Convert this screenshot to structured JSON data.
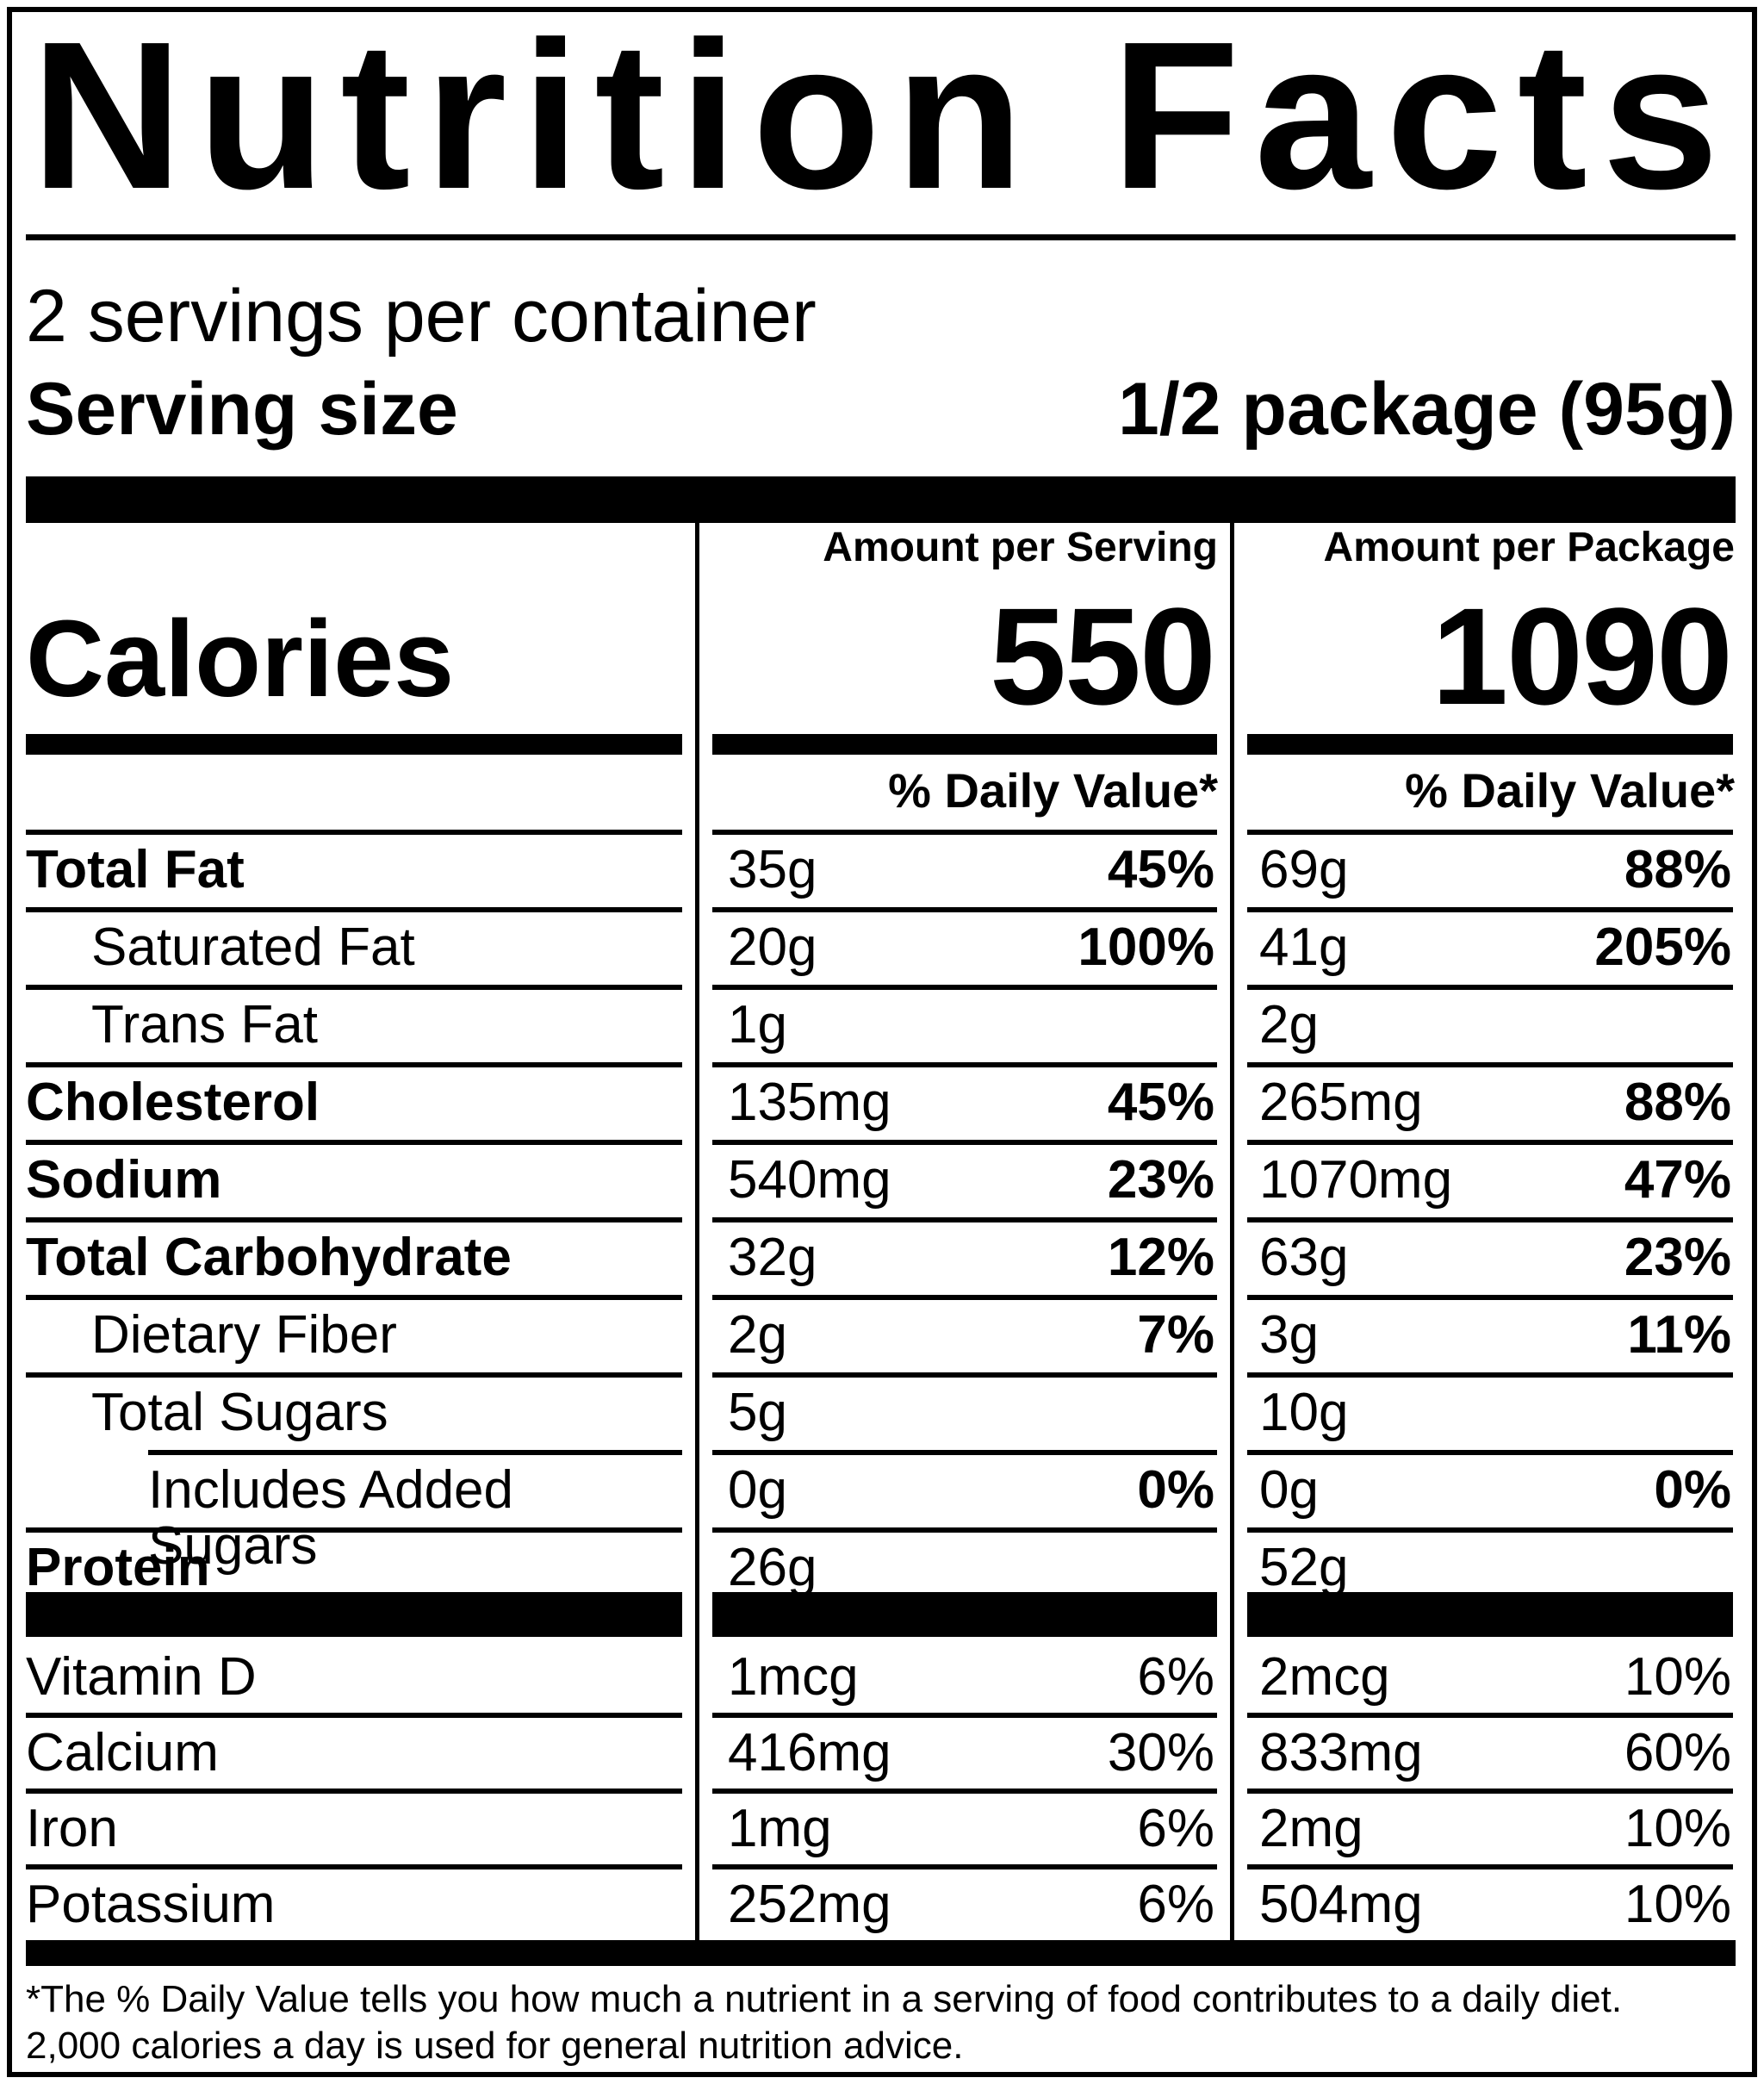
{
  "colors": {
    "ink": "#000000",
    "paper": "#ffffff"
  },
  "label": {
    "title": "Nutrition Facts",
    "servings_per_container": "2 servings per container",
    "serving_size": {
      "label": "Serving size",
      "value": "1/2 package (95g)"
    },
    "calories_label": "Calories",
    "columns": [
      {
        "amount_header": "Amount per Serving",
        "calories": "550",
        "daily_value_header": "% Daily Value*"
      },
      {
        "amount_header": "Amount per Package",
        "calories": "1090",
        "daily_value_header": "% Daily Value*"
      }
    ],
    "nutrients": [
      {
        "label": "Total Fat",
        "bold": true,
        "indent": 0,
        "per_serving": {
          "amount": "35g",
          "dv": "45%"
        },
        "per_package": {
          "amount": "69g",
          "dv": "88%"
        }
      },
      {
        "label": "Saturated Fat",
        "bold": false,
        "indent": 1,
        "per_serving": {
          "amount": "20g",
          "dv": "100%"
        },
        "per_package": {
          "amount": "41g",
          "dv": "205%"
        }
      },
      {
        "label": "Trans Fat",
        "bold": false,
        "indent": 1,
        "per_serving": {
          "amount": "1g",
          "dv": ""
        },
        "per_package": {
          "amount": "2g",
          "dv": ""
        }
      },
      {
        "label": "Cholesterol",
        "bold": true,
        "indent": 0,
        "per_serving": {
          "amount": "135mg",
          "dv": "45%"
        },
        "per_package": {
          "amount": "265mg",
          "dv": "88%"
        }
      },
      {
        "label": "Sodium",
        "bold": true,
        "indent": 0,
        "per_serving": {
          "amount": "540mg",
          "dv": "23%"
        },
        "per_package": {
          "amount": "1070mg",
          "dv": "47%"
        }
      },
      {
        "label": "Total Carbohydrate",
        "bold": true,
        "indent": 0,
        "per_serving": {
          "amount": "32g",
          "dv": "12%"
        },
        "per_package": {
          "amount": "63g",
          "dv": "23%"
        }
      },
      {
        "label": "Dietary Fiber",
        "bold": false,
        "indent": 1,
        "per_serving": {
          "amount": "2g",
          "dv": "7%"
        },
        "per_package": {
          "amount": "3g",
          "dv": "11%"
        }
      },
      {
        "label": "Total Sugars",
        "bold": false,
        "indent": 1,
        "per_serving": {
          "amount": "5g",
          "dv": ""
        },
        "per_package": {
          "amount": "10g",
          "dv": ""
        }
      },
      {
        "label": "Includes Added Sugars",
        "bold": false,
        "indent": 2,
        "per_serving": {
          "amount": "0g",
          "dv": "0%"
        },
        "per_package": {
          "amount": "0g",
          "dv": "0%"
        }
      },
      {
        "label": "Protein",
        "bold": true,
        "indent": 0,
        "per_serving": {
          "amount": "26g",
          "dv": ""
        },
        "per_package": {
          "amount": "52g",
          "dv": ""
        }
      }
    ],
    "micronutrients": [
      {
        "label": "Vitamin D",
        "bold": false,
        "indent": 0,
        "per_serving": {
          "amount": "1mcg",
          "dv": "6%"
        },
        "per_package": {
          "amount": "2mcg",
          "dv": "10%"
        }
      },
      {
        "label": "Calcium",
        "bold": false,
        "indent": 0,
        "per_serving": {
          "amount": "416mg",
          "dv": "30%"
        },
        "per_package": {
          "amount": "833mg",
          "dv": "60%"
        }
      },
      {
        "label": "Iron",
        "bold": false,
        "indent": 0,
        "per_serving": {
          "amount": "1mg",
          "dv": "6%"
        },
        "per_package": {
          "amount": "2mg",
          "dv": "10%"
        }
      },
      {
        "label": "Potassium",
        "bold": false,
        "indent": 0,
        "per_serving": {
          "amount": "252mg",
          "dv": "6%"
        },
        "per_package": {
          "amount": "504mg",
          "dv": "10%"
        }
      }
    ],
    "footnote_lines": [
      "*The % Daily Value tells you how much a nutrient in a serving of food contributes to a daily diet.",
      "2,000 calories a day is used for general nutrition advice."
    ]
  }
}
